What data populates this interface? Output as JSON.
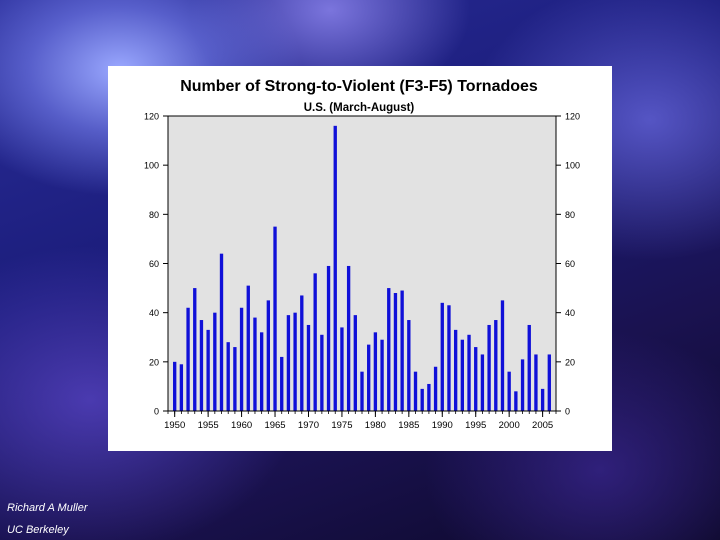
{
  "credits": {
    "author": "Richard A Muller",
    "affiliation": "UC Berkeley"
  },
  "chart_data": {
    "type": "bar",
    "title": "Number of Strong-to-Violent (F3-F5) Tornadoes",
    "subtitle": "U.S. (March-August)",
    "xlabel": "",
    "ylabel": "",
    "x": [
      1950,
      1951,
      1952,
      1953,
      1954,
      1955,
      1956,
      1957,
      1958,
      1959,
      1960,
      1961,
      1962,
      1963,
      1964,
      1965,
      1966,
      1967,
      1968,
      1969,
      1970,
      1971,
      1972,
      1973,
      1974,
      1975,
      1976,
      1977,
      1978,
      1979,
      1980,
      1981,
      1982,
      1983,
      1984,
      1985,
      1986,
      1987,
      1988,
      1989,
      1990,
      1991,
      1992,
      1993,
      1994,
      1995,
      1996,
      1997,
      1998,
      1999,
      2000,
      2001,
      2002,
      2003,
      2004,
      2005,
      2006
    ],
    "values": [
      20,
      19,
      42,
      50,
      37,
      33,
      40,
      64,
      28,
      26,
      42,
      51,
      38,
      32,
      45,
      75,
      22,
      39,
      40,
      47,
      35,
      56,
      31,
      59,
      116,
      34,
      59,
      39,
      16,
      27,
      32,
      29,
      50,
      48,
      49,
      37,
      16,
      9,
      11,
      18,
      44,
      43,
      33,
      29,
      31,
      26,
      23,
      35,
      37,
      45,
      16,
      8,
      21,
      35,
      23,
      9,
      23
    ],
    "xlim": [
      1949,
      2007
    ],
    "ylim": [
      0,
      120
    ],
    "x_ticks": [
      "1950",
      "1955",
      "1960",
      "1965",
      "1970",
      "1975",
      "1980",
      "1985",
      "1990",
      "1995",
      "2000",
      "2005"
    ],
    "y_ticks": [
      "0",
      "20",
      "40",
      "60",
      "80",
      "100",
      "120"
    ],
    "bar_color": "#1010d8",
    "plot_background": "#e2e2e2",
    "grid": false,
    "legend": "none"
  }
}
